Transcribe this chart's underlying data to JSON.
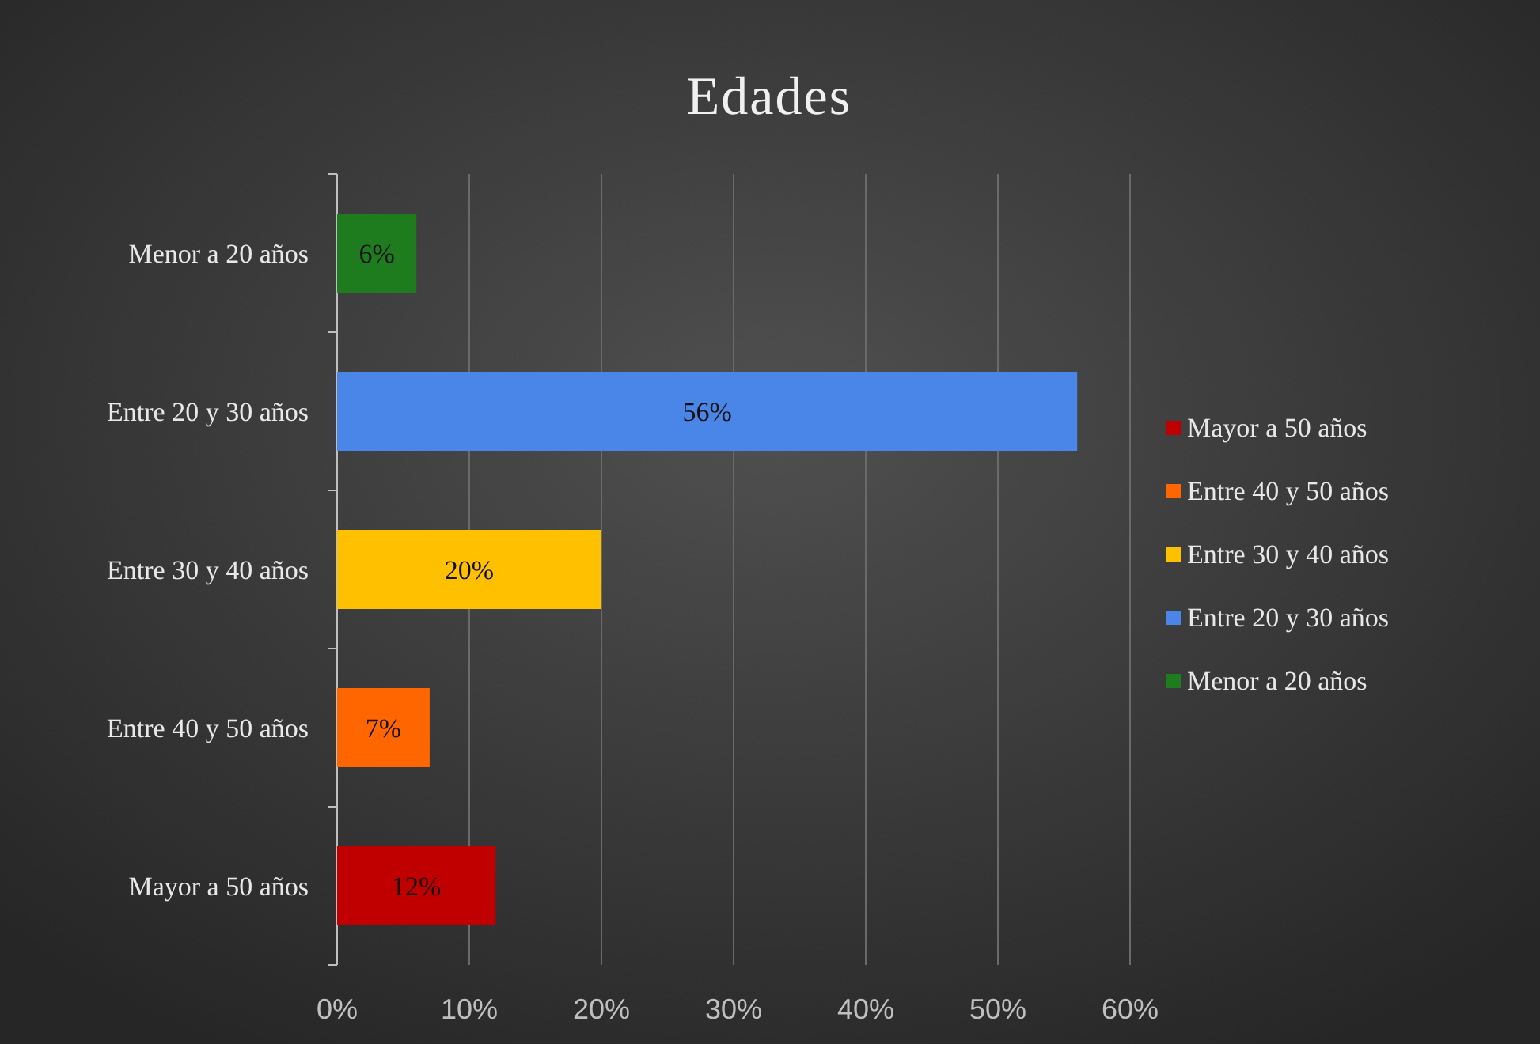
{
  "chart_data": {
    "type": "bar",
    "orientation": "horizontal",
    "title": "Edades",
    "categories": [
      "Menor a 20 años",
      "Entre 20 y 30 años",
      "Entre 30 y 40 años",
      "Entre 40 y 50 años",
      "Mayor a 50 años"
    ],
    "series": [
      {
        "name": "Mayor a 50 años",
        "color": "#c00000",
        "values": [
          null,
          null,
          null,
          null,
          12
        ],
        "value_labels": [
          null,
          null,
          null,
          null,
          "12%"
        ]
      },
      {
        "name": "Entre 40 y 50 años",
        "color": "#ff6600",
        "values": [
          null,
          null,
          null,
          7,
          null
        ],
        "value_labels": [
          null,
          null,
          null,
          "7%",
          null
        ]
      },
      {
        "name": "Entre 30 y 40 años",
        "color": "#ffc000",
        "values": [
          null,
          null,
          20,
          null,
          null
        ],
        "value_labels": [
          null,
          null,
          "20%",
          null,
          null
        ]
      },
      {
        "name": "Entre 20 y 30 años",
        "color": "#4a86e8",
        "values": [
          null,
          56,
          null,
          null,
          null
        ],
        "value_labels": [
          null,
          "56%",
          null,
          null,
          null
        ]
      },
      {
        "name": "Menor a 20 años",
        "color": "#1e7b1e",
        "values": [
          6,
          null,
          null,
          null,
          null
        ],
        "value_labels": [
          "6%",
          null,
          null,
          null,
          null
        ]
      }
    ],
    "xlim": [
      0,
      60
    ],
    "xticks": [
      {
        "value": 0,
        "label": "0%"
      },
      {
        "value": 10,
        "label": "10%"
      },
      {
        "value": 20,
        "label": "20%"
      },
      {
        "value": 30,
        "label": "30%"
      },
      {
        "value": 40,
        "label": "40%"
      },
      {
        "value": 50,
        "label": "50%"
      },
      {
        "value": 60,
        "label": "60%"
      }
    ],
    "grid": "x",
    "legend": "right"
  }
}
